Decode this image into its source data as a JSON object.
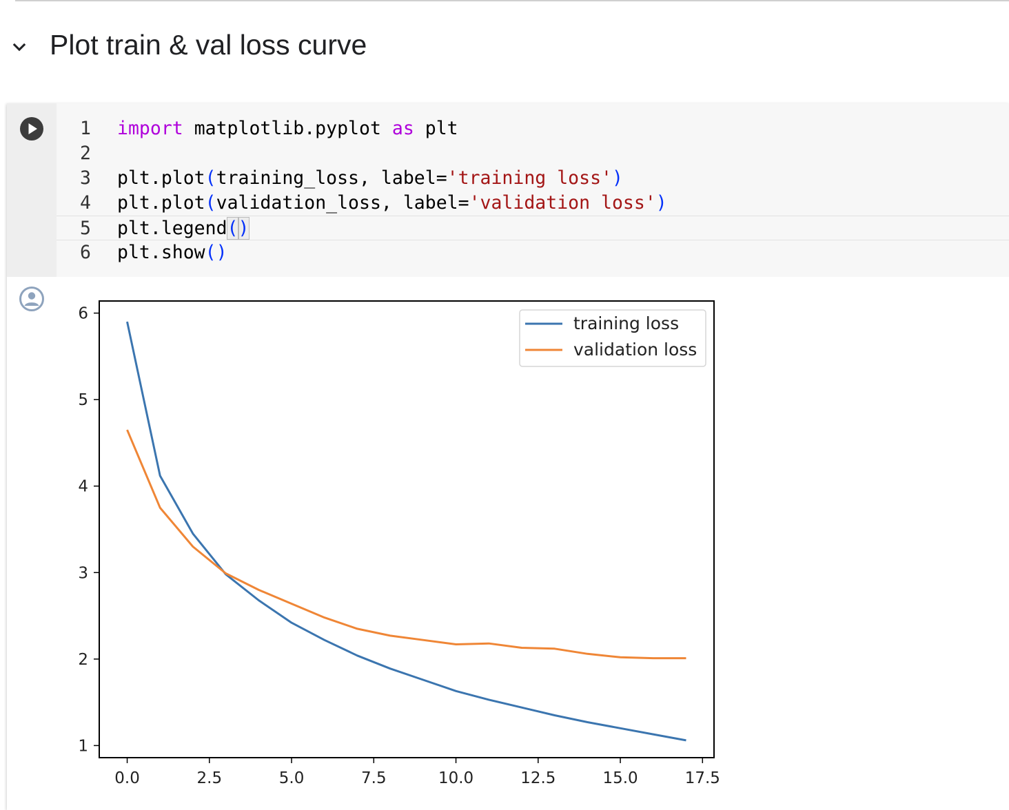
{
  "section": {
    "title": "Plot train & val loss curve",
    "collapse_icon": "chevron-down-icon"
  },
  "cell": {
    "run_icon": "play-circle-icon",
    "output_icon": "account-circle-icon",
    "lines": [
      {
        "num": "1"
      },
      {
        "num": "2"
      },
      {
        "num": "3"
      },
      {
        "num": "4"
      },
      {
        "num": "5"
      },
      {
        "num": "6"
      }
    ],
    "code": {
      "l1_import": "import",
      "l1_mod": " matplotlib.pyplot ",
      "l1_as": "as",
      "l1_alias": " plt",
      "l3_pre": "plt.plot",
      "l3_open": "(",
      "l3_mid": "training_loss, label=",
      "l3_str": "'training loss'",
      "l3_close": ")",
      "l4_pre": "plt.plot",
      "l4_open": "(",
      "l4_mid": "validation_loss, label=",
      "l4_str": "'validation loss'",
      "l4_close": ")",
      "l5_pre": "plt.legend",
      "l5_open": "(",
      "l5_close": ")",
      "l6_pre": "plt.show",
      "l6_open": "(",
      "l6_close": ")"
    }
  },
  "chart_data": {
    "type": "line",
    "x": [
      0,
      1,
      2,
      3,
      4,
      5,
      6,
      7,
      8,
      9,
      10,
      11,
      12,
      13,
      14,
      15,
      16,
      17
    ],
    "series": [
      {
        "name": "training loss",
        "color": "#3b75af",
        "values": [
          5.9,
          4.12,
          3.45,
          2.98,
          2.68,
          2.42,
          2.22,
          2.04,
          1.89,
          1.76,
          1.63,
          1.53,
          1.44,
          1.35,
          1.27,
          1.2,
          1.13,
          1.06
        ]
      },
      {
        "name": "validation loss",
        "color": "#ef8636",
        "values": [
          4.65,
          3.75,
          3.3,
          2.99,
          2.8,
          2.64,
          2.48,
          2.35,
          2.27,
          2.22,
          2.17,
          2.18,
          2.13,
          2.12,
          2.06,
          2.02,
          2.01,
          2.01
        ]
      }
    ],
    "xlim": [
      -0.85,
      17.85
    ],
    "ylim": [
      0.86,
      6.14
    ],
    "xticks": [
      "0.0",
      "2.5",
      "5.0",
      "7.5",
      "10.0",
      "12.5",
      "15.0",
      "17.5"
    ],
    "xtick_values": [
      0,
      2.5,
      5,
      7.5,
      10,
      12.5,
      15,
      17.5
    ],
    "yticks": [
      "1",
      "2",
      "3",
      "4",
      "5",
      "6"
    ],
    "ytick_values": [
      1,
      2,
      3,
      4,
      5,
      6
    ],
    "grid": false,
    "legend": "top-right"
  }
}
